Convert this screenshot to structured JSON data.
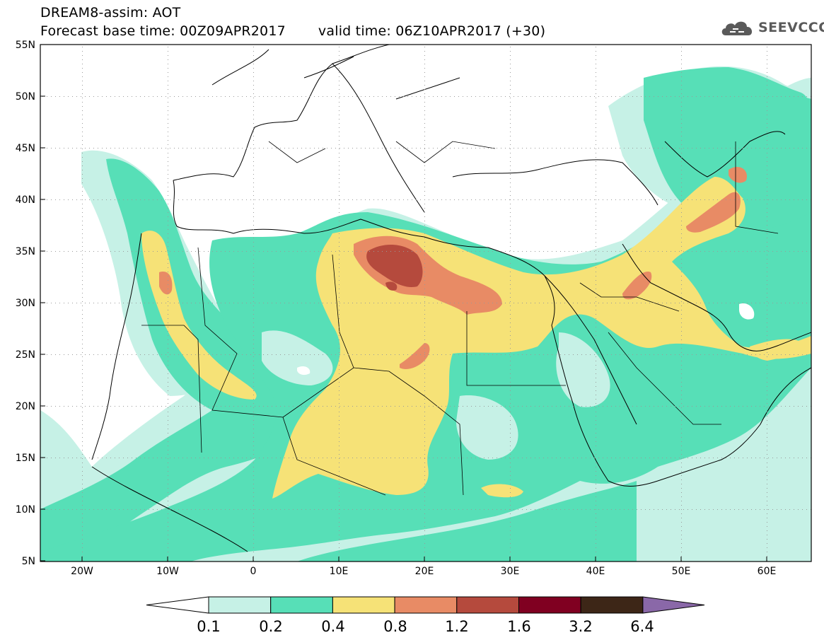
{
  "header": {
    "title": "DREAM8-assim: AOT",
    "base_time": "Forecast base time: 00Z09APR2017",
    "valid_time": "valid time: 06Z10APR2017 (+30)"
  },
  "logo": {
    "text": "SEEVCCC",
    "icon": "cloud-icon"
  },
  "axes": {
    "y_ticks": [
      "55N",
      "50N",
      "45N",
      "40N",
      "35N",
      "30N",
      "25N",
      "20N",
      "15N",
      "10N",
      "5N"
    ],
    "x_ticks": [
      "20W",
      "10W",
      "0",
      "10E",
      "20E",
      "30E",
      "40E",
      "50E",
      "60E"
    ]
  },
  "colorbar": {
    "colors": [
      "#ffffff",
      "#c6f1e6",
      "#57dfb7",
      "#f6e277",
      "#e88b65",
      "#b54a3d",
      "#800021",
      "#3d2617",
      "#8a68a8"
    ],
    "levels": [
      "0.1",
      "0.2",
      "0.4",
      "0.8",
      "1.2",
      "1.6",
      "3.2",
      "6.4"
    ]
  }
}
